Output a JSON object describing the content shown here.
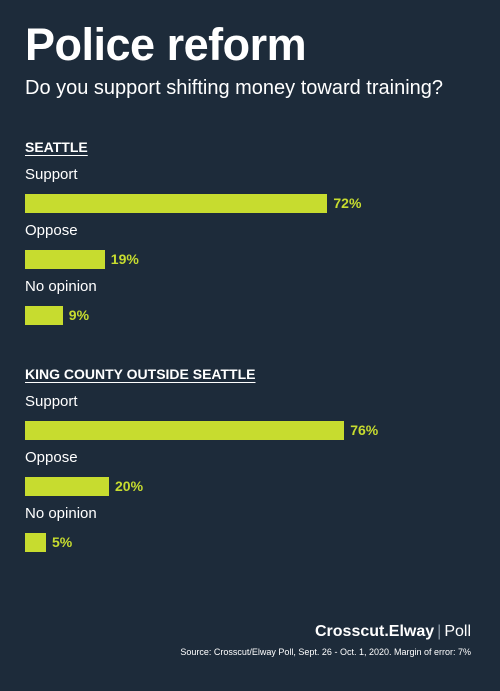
{
  "title": "Police reform",
  "subtitle": "Do you support shifting money toward training?",
  "chart_data": [
    {
      "type": "bar",
      "title": "SEATTLE",
      "categories": [
        "Support",
        "Oppose",
        "No opinion"
      ],
      "values": [
        72,
        19,
        9
      ],
      "value_labels": [
        "72%",
        "19%",
        "9%"
      ],
      "unit": "%",
      "xlim": [
        0,
        100
      ]
    },
    {
      "type": "bar",
      "title": "KING COUNTY OUTSIDE SEATTLE",
      "categories": [
        "Support",
        "Oppose",
        "No opinion"
      ],
      "values": [
        76,
        20,
        5
      ],
      "value_labels": [
        "76%",
        "20%",
        "5%"
      ],
      "unit": "%",
      "xlim": [
        0,
        100
      ]
    }
  ],
  "brand": {
    "name": "Crosscut.Elway",
    "suffix": "Poll"
  },
  "source": "Source: Crosscut/Elway Poll, Sept. 26 - Oct. 1, 2020. Margin of error: 7%",
  "colors": {
    "background": "#1d2b3a",
    "bar": "#c7dc2f",
    "text": "#ffffff"
  }
}
